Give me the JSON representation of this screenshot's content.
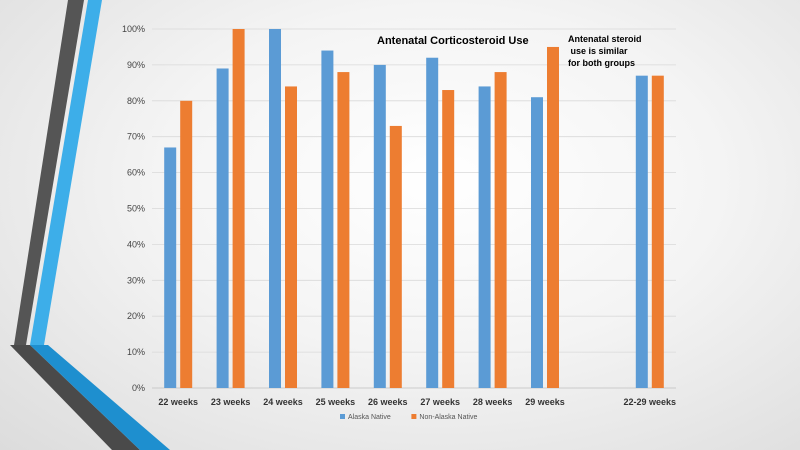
{
  "chart_data": {
    "type": "bar",
    "title": "Antenatal Corticosteroid Use",
    "annotation": "Antenatal steroid\n use is similar\nfor both groups",
    "categories": [
      "22 weeks",
      "23 weeks",
      "24 weeks",
      "25 weeks",
      "26 weeks",
      "27 weeks",
      "28 weeks",
      "29 weeks",
      "",
      "22-29 weeks"
    ],
    "series": [
      {
        "name": "Alaska Native",
        "color": "#5b9bd5",
        "values": [
          67,
          89,
          100,
          94,
          90,
          92,
          84,
          81,
          null,
          87
        ]
      },
      {
        "name": "Non-Alaska Native",
        "color": "#ed7d31",
        "values": [
          80,
          100,
          84,
          88,
          73,
          83,
          88,
          95,
          null,
          87
        ]
      }
    ],
    "y_ticks": [
      "0%",
      "10%",
      "20%",
      "30%",
      "40%",
      "50%",
      "60%",
      "70%",
      "80%",
      "90%",
      "100%"
    ],
    "ylim": [
      0,
      100
    ],
    "grid": true,
    "legend_position": "bottom"
  }
}
